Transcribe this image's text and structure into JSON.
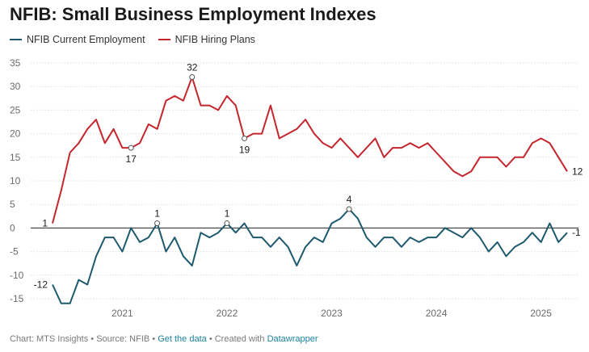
{
  "chart_data": {
    "type": "line",
    "title": "NFIB: Small Business Employment Indexes",
    "xlabel": "",
    "ylabel": "",
    "ylim": [
      -15,
      35
    ],
    "yticks": [
      35,
      30,
      25,
      20,
      15,
      10,
      5,
      0,
      -5,
      -10,
      -15
    ],
    "xticks": [
      {
        "label": "2021",
        "x": 2021.0
      },
      {
        "label": "2022",
        "x": 2022.0
      },
      {
        "label": "2023",
        "x": 2023.0
      },
      {
        "label": "2024",
        "x": 2024.0
      },
      {
        "label": "2025",
        "x": 2025.0
      }
    ],
    "x_start": 2020.3333,
    "x_step_months": 1,
    "series": [
      {
        "name": "NFIB Current Employment",
        "color": "#1d5a6e",
        "values": [
          -12,
          -16,
          -16,
          -11,
          -12,
          -6,
          -2,
          -2,
          -5,
          0,
          -3,
          -2,
          1,
          -5,
          -2,
          -6,
          -8,
          -1,
          -2,
          -1,
          1,
          -1,
          1,
          -2,
          -2,
          -4,
          -2,
          -4,
          -8,
          -4,
          -2,
          -3,
          1,
          2,
          4,
          2,
          -2,
          -4,
          -2,
          -2,
          -4,
          -2,
          -3,
          -2,
          -2,
          0,
          -1,
          -2,
          0,
          -2,
          -5,
          -3,
          -6,
          -4,
          -3,
          -1,
          -3,
          1,
          -3,
          -1
        ]
      },
      {
        "name": "NFIB Hiring Plans",
        "color": "#c4262e",
        "values": [
          1,
          8,
          16,
          18,
          21,
          23,
          18,
          21,
          17,
          17,
          18,
          22,
          21,
          27,
          28,
          27,
          32,
          26,
          26,
          25,
          28,
          26,
          19,
          20,
          20,
          26,
          19,
          20,
          21,
          23,
          20,
          18,
          17,
          19,
          17,
          15,
          17,
          19,
          15,
          17,
          17,
          18,
          17,
          18,
          16,
          14,
          12,
          11,
          12,
          15,
          15,
          15,
          13,
          15,
          15,
          18,
          19,
          18,
          15,
          12
        ]
      }
    ],
    "annotations": [
      {
        "series": 0,
        "index": 0,
        "text": "-12",
        "pos": "left",
        "marker": false
      },
      {
        "series": 0,
        "index": 12,
        "text": "1",
        "pos": "above",
        "marker": true
      },
      {
        "series": 0,
        "index": 20,
        "text": "1",
        "pos": "above",
        "marker": true
      },
      {
        "series": 0,
        "index": 34,
        "text": "4",
        "pos": "above",
        "marker": true
      },
      {
        "series": 0,
        "index": 59,
        "text": "-1",
        "pos": "right",
        "marker": false
      },
      {
        "series": 1,
        "index": 0,
        "text": "1",
        "pos": "left",
        "marker": false
      },
      {
        "series": 1,
        "index": 9,
        "text": "17",
        "pos": "below",
        "marker": true
      },
      {
        "series": 1,
        "index": 16,
        "text": "32",
        "pos": "above",
        "marker": true
      },
      {
        "series": 1,
        "index": 22,
        "text": "19",
        "pos": "below",
        "marker": true
      },
      {
        "series": 1,
        "index": 59,
        "text": "12",
        "pos": "right",
        "marker": false
      }
    ]
  },
  "footer": {
    "chart_credit": "Chart: MTS Insights",
    "source": "Source: NFIB",
    "get_data": "Get the data",
    "created_with": "Created with",
    "tool": "Datawrapper",
    "sep": "•"
  }
}
